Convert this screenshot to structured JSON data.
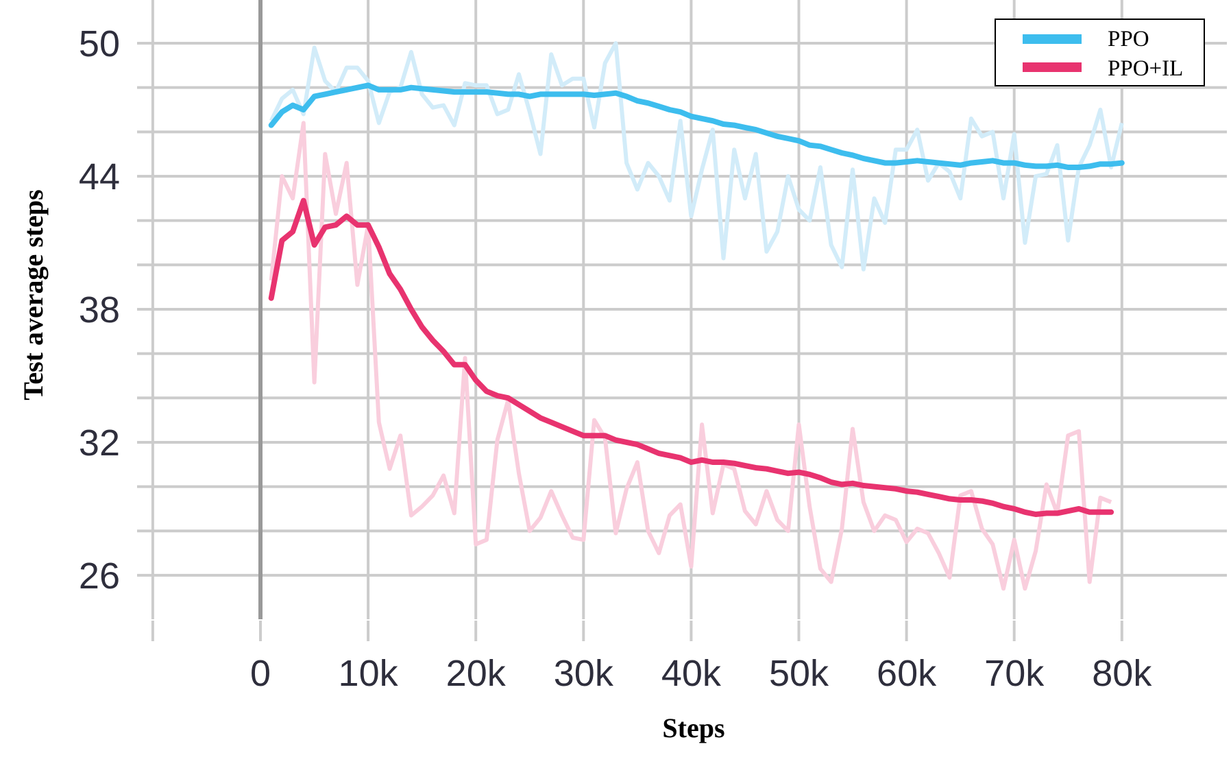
{
  "chart_data": {
    "type": "line",
    "title": "",
    "xlabel": "Steps",
    "ylabel": "Test average steps",
    "xlim": [
      -1000,
      80000
    ],
    "ylim": [
      24,
      52
    ],
    "x_ticks": [
      0,
      10000,
      20000,
      30000,
      40000,
      50000,
      60000,
      70000,
      80000
    ],
    "x_tick_labels": [
      "0",
      "10k",
      "20k",
      "30k",
      "40k",
      "50k",
      "60k",
      "70k",
      "80k"
    ],
    "y_ticks": [
      26,
      32,
      38,
      44,
      50
    ],
    "y_tick_labels": [
      "26",
      "32",
      "38",
      "44",
      "50"
    ],
    "grid": true,
    "legend": "top-right",
    "colors": {
      "PPO": "#3dbdee",
      "PPO+IL": "#e8336f",
      "grid": "#cccccc",
      "zero_line": "#999999"
    },
    "series": [
      {
        "name": "PPO",
        "x": [
          1000,
          2000,
          3000,
          4000,
          5000,
          6000,
          7000,
          8000,
          9000,
          10000,
          11000,
          12000,
          13000,
          14000,
          15000,
          16000,
          17000,
          18000,
          19000,
          20000,
          21000,
          22000,
          23000,
          24000,
          25000,
          26000,
          27000,
          28000,
          29000,
          30000,
          31000,
          32000,
          33000,
          34000,
          35000,
          36000,
          37000,
          38000,
          39000,
          40000,
          41000,
          42000,
          43000,
          44000,
          45000,
          46000,
          47000,
          48000,
          49000,
          50000,
          51000,
          52000,
          53000,
          54000,
          55000,
          56000,
          57000,
          58000,
          59000,
          60000,
          61000,
          62000,
          63000,
          64000,
          65000,
          66000,
          67000,
          68000,
          69000,
          70000,
          71000,
          72000,
          73000,
          74000,
          75000,
          76000,
          77000,
          78000,
          79000,
          80000
        ],
        "values": [
          46.3,
          46.9,
          47.2,
          47.0,
          47.6,
          47.7,
          47.8,
          47.9,
          48.0,
          48.1,
          47.9,
          47.9,
          47.9,
          48.0,
          47.95,
          47.9,
          47.85,
          47.8,
          47.8,
          47.8,
          47.8,
          47.75,
          47.7,
          47.7,
          47.6,
          47.7,
          47.7,
          47.7,
          47.7,
          47.7,
          47.65,
          47.7,
          47.75,
          47.6,
          47.4,
          47.3,
          47.15,
          47.0,
          46.9,
          46.7,
          46.6,
          46.5,
          46.35,
          46.3,
          46.2,
          46.1,
          45.95,
          45.8,
          45.7,
          45.6,
          45.4,
          45.35,
          45.2,
          45.05,
          44.95,
          44.8,
          44.7,
          44.6,
          44.6,
          44.65,
          44.7,
          44.65,
          44.6,
          44.55,
          44.5,
          44.6,
          44.65,
          44.7,
          44.6,
          44.6,
          44.5,
          44.45,
          44.45,
          44.5,
          44.4,
          44.4,
          44.45,
          44.55,
          44.55,
          44.6
        ]
      },
      {
        "name": "PPO+IL",
        "x": [
          1000,
          2000,
          3000,
          4000,
          5000,
          6000,
          7000,
          8000,
          9000,
          10000,
          11000,
          12000,
          13000,
          14000,
          15000,
          16000,
          17000,
          18000,
          19000,
          20000,
          21000,
          22000,
          23000,
          24000,
          25000,
          26000,
          27000,
          28000,
          29000,
          30000,
          31000,
          32000,
          33000,
          34000,
          35000,
          36000,
          37000,
          38000,
          39000,
          40000,
          41000,
          42000,
          43000,
          44000,
          45000,
          46000,
          47000,
          48000,
          49000,
          50000,
          51000,
          52000,
          53000,
          54000,
          55000,
          56000,
          57000,
          58000,
          59000,
          60000,
          61000,
          62000,
          63000,
          64000,
          65000,
          66000,
          67000,
          68000,
          69000,
          70000,
          71000,
          72000,
          73000,
          74000,
          75000,
          76000,
          77000,
          78000,
          79000
        ],
        "values": [
          38.5,
          41.1,
          41.5,
          42.9,
          40.9,
          41.7,
          41.8,
          42.2,
          41.8,
          41.8,
          40.8,
          39.6,
          38.9,
          38.0,
          37.2,
          36.6,
          36.1,
          35.5,
          35.5,
          34.8,
          34.3,
          34.1,
          34.0,
          33.7,
          33.4,
          33.1,
          32.9,
          32.7,
          32.5,
          32.3,
          32.3,
          32.3,
          32.1,
          32.0,
          31.9,
          31.7,
          31.5,
          31.4,
          31.3,
          31.1,
          31.2,
          31.1,
          31.1,
          31.05,
          30.95,
          30.85,
          30.8,
          30.7,
          30.6,
          30.65,
          30.55,
          30.4,
          30.2,
          30.1,
          30.15,
          30.05,
          30.0,
          29.95,
          29.9,
          29.8,
          29.75,
          29.65,
          29.55,
          29.45,
          29.4,
          29.4,
          29.35,
          29.25,
          29.1,
          29.0,
          28.85,
          28.75,
          28.8,
          28.8,
          28.9,
          29.0,
          28.85,
          28.85,
          28.85
        ]
      }
    ],
    "raw_series": [
      {
        "series": "PPO",
        "x": [
          1000,
          2000,
          3000,
          4000,
          5000,
          6000,
          7000,
          8000,
          9000,
          10000,
          11000,
          12000,
          13000,
          14000,
          15000,
          16000,
          17000,
          18000,
          19000,
          20000,
          21000,
          22000,
          23000,
          24000,
          25000,
          26000,
          27000,
          28000,
          29000,
          30000,
          31000,
          32000,
          33000,
          34000,
          35000,
          36000,
          37000,
          38000,
          39000,
          40000,
          41000,
          42000,
          43000,
          44000,
          45000,
          46000,
          47000,
          48000,
          49000,
          50000,
          51000,
          52000,
          53000,
          54000,
          55000,
          56000,
          57000,
          58000,
          59000,
          60000,
          61000,
          62000,
          63000,
          64000,
          65000,
          66000,
          67000,
          68000,
          69000,
          70000,
          71000,
          72000,
          73000,
          74000,
          75000,
          76000,
          77000,
          78000,
          79000,
          80000
        ],
        "values": [
          46.5,
          47.5,
          47.9,
          46.8,
          49.8,
          48.3,
          47.8,
          48.9,
          48.9,
          48.3,
          46.4,
          47.8,
          48.0,
          49.6,
          47.7,
          47.1,
          47.2,
          46.3,
          48.2,
          48.1,
          48.1,
          46.8,
          47.0,
          48.6,
          46.9,
          45.0,
          49.5,
          48.1,
          48.4,
          48.4,
          46.2,
          49.1,
          50.0,
          44.6,
          43.4,
          44.6,
          44.0,
          42.9,
          46.5,
          42.2,
          44.3,
          46.1,
          40.3,
          45.2,
          43.0,
          45.0,
          40.6,
          41.5,
          44.0,
          42.5,
          42.0,
          44.4,
          40.9,
          39.9,
          44.3,
          39.8,
          43.0,
          41.9,
          45.2,
          45.2,
          46.1,
          43.8,
          44.6,
          44.2,
          43.0,
          46.6,
          45.8,
          46.0,
          43.0,
          45.9,
          41.0,
          44.0,
          44.1,
          45.4,
          41.1,
          44.4,
          45.4,
          47.0,
          44.4,
          46.4
        ]
      },
      {
        "series": "PPO+IL",
        "x": [
          1000,
          2000,
          3000,
          4000,
          5000,
          6000,
          7000,
          8000,
          9000,
          10000,
          11000,
          12000,
          13000,
          14000,
          15000,
          16000,
          17000,
          18000,
          19000,
          20000,
          21000,
          22000,
          23000,
          24000,
          25000,
          26000,
          27000,
          28000,
          29000,
          30000,
          31000,
          32000,
          33000,
          34000,
          35000,
          36000,
          37000,
          38000,
          39000,
          40000,
          41000,
          42000,
          43000,
          44000,
          45000,
          46000,
          47000,
          48000,
          49000,
          50000,
          51000,
          52000,
          53000,
          54000,
          55000,
          56000,
          57000,
          58000,
          59000,
          60000,
          61000,
          62000,
          63000,
          64000,
          65000,
          66000,
          67000,
          68000,
          69000,
          70000,
          71000,
          72000,
          73000,
          74000,
          75000,
          76000,
          77000,
          78000,
          79000
        ],
        "values": [
          39.3,
          44.0,
          43.0,
          46.4,
          34.7,
          45.0,
          42.3,
          44.6,
          39.1,
          41.8,
          32.9,
          30.8,
          32.3,
          28.7,
          29.1,
          29.6,
          30.5,
          28.8,
          35.8,
          27.4,
          27.6,
          32.1,
          33.9,
          30.6,
          28.0,
          28.6,
          29.8,
          28.7,
          27.7,
          27.6,
          33.0,
          32.2,
          27.9,
          29.9,
          31.1,
          28.0,
          27.0,
          28.7,
          29.2,
          26.4,
          32.8,
          28.8,
          31.0,
          30.8,
          28.9,
          28.3,
          29.8,
          28.5,
          28.0,
          32.8,
          29.1,
          26.3,
          25.7,
          28.1,
          32.6,
          29.3,
          28.0,
          28.7,
          28.5,
          27.5,
          28.1,
          27.9,
          27.0,
          25.9,
          29.6,
          29.8,
          28.1,
          27.4,
          25.4,
          27.6,
          25.4,
          27.1,
          30.1,
          28.8,
          32.3,
          32.5,
          25.7,
          29.5,
          29.3
        ]
      }
    ]
  }
}
